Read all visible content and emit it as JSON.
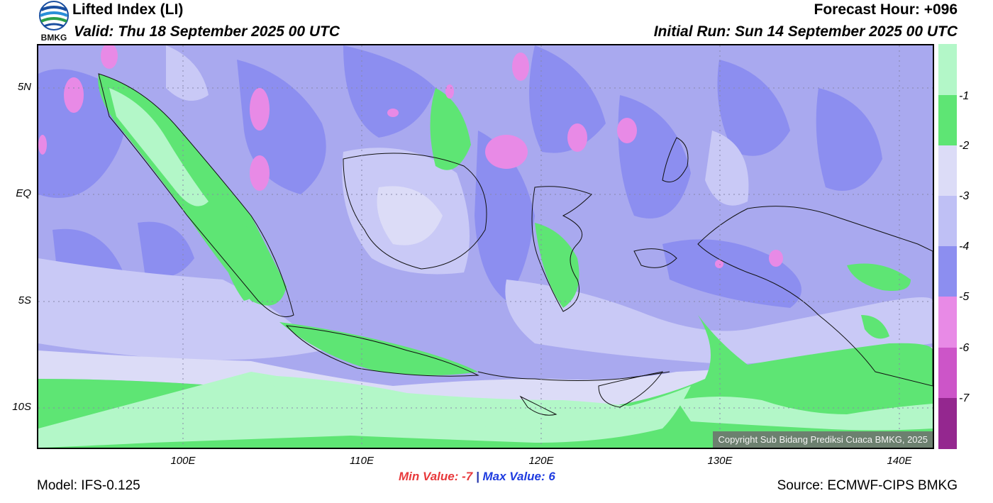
{
  "header": {
    "title": "Lifted Index (LI)",
    "valid": "Valid: Thu 18 September 2025 00 UTC",
    "forecast_hour": "Forecast Hour: +096",
    "initial_run": "Initial Run: Sun 14 September 2025 00 UTC"
  },
  "logo": {
    "text": "BMKG"
  },
  "map": {
    "lat_labels": [
      "5N",
      "EQ",
      "5S",
      "10S"
    ],
    "lon_labels": [
      "100E",
      "110E",
      "120E",
      "130E",
      "140E"
    ],
    "copyright": "Copyright Sub Bidang Prediksi Cuaca BMKG, 2025",
    "background_color": "#a9a9ef"
  },
  "legend": {
    "labels": [
      "-1",
      "-2",
      "-3",
      "-4",
      "-5",
      "-6",
      "-7"
    ],
    "colors": [
      "#b3f7c8",
      "#5ee574",
      "#dcdcf7",
      "#bfc0f5",
      "#8c8ef0",
      "#e88ae6",
      "#cc55c8",
      "#b33ab0",
      "#94278f"
    ]
  },
  "stats": {
    "min_label": "Min Value:",
    "min_value": "-7",
    "separator": "|",
    "max_label": "Max Value:",
    "max_value": "6"
  },
  "footer": {
    "model": "Model: IFS-0.125",
    "source": "Source: ECMWF-CIPS BMKG"
  }
}
